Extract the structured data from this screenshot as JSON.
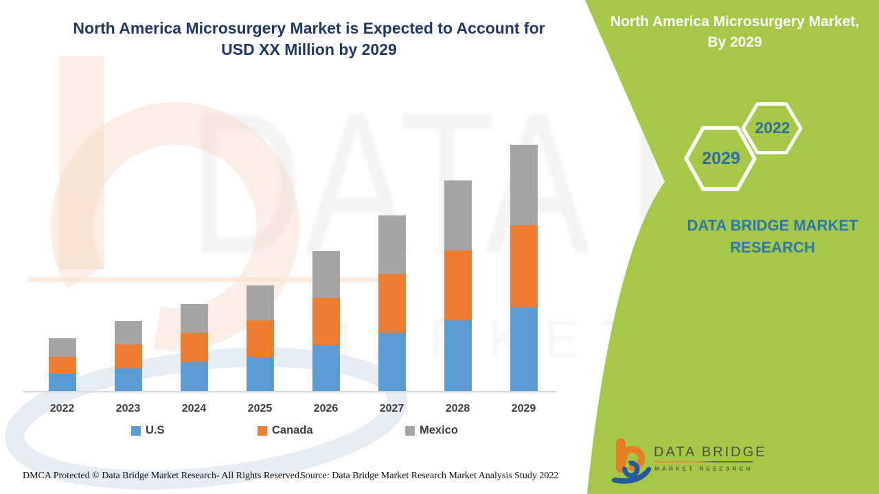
{
  "title": {
    "line1": "North America Microsurgery Market is Expected to Account for",
    "line2": "USD XX Million by 2029"
  },
  "side_panel": {
    "title_line1": "North America Microsurgery Market,",
    "title_line2": "By 2029",
    "hexagon_large_year": "2029",
    "hexagon_small_year": "2022",
    "brand_line1": "DATA BRIDGE MARKET",
    "brand_line2": "RESEARCH"
  },
  "chart_data": {
    "type": "bar",
    "stacked": true,
    "title": "North America Microsurgery Market is Expected to Account for USD XX Million by 2029",
    "categories": [
      "2022",
      "2023",
      "2024",
      "2025",
      "2026",
      "2027",
      "2028",
      "2029"
    ],
    "series": [
      {
        "name": "U.S",
        "color": "#5b9bd5",
        "values": [
          25,
          33,
          42,
          50,
          67,
          85,
          103,
          122
        ]
      },
      {
        "name": "Canada",
        "color": "#ed7d31",
        "values": [
          25,
          35,
          43,
          53,
          69,
          86,
          102,
          120
        ]
      },
      {
        "name": "Mexico",
        "color": "#a5a5a5",
        "values": [
          27,
          34,
          42,
          51,
          68,
          85,
          102,
          117
        ]
      }
    ],
    "value_unit": "relative units (y-axis not shown; chart labeled USD XX Million)",
    "xlabel": "",
    "ylabel": "",
    "grid": false,
    "y_axis_visible": false,
    "legend_position": "bottom"
  },
  "footer": {
    "dmca_text": "DMCA Protected © Data Bridge Market Research- All Rights Reserved.",
    "source_text": "Source: Data Bridge Market Research Market Analysis Study 2022"
  },
  "logo": {
    "name": "DATA BRIDGE",
    "subtitle": "MARKET RESEARCH"
  },
  "watermark": {
    "large_text": "DATA BRIDGE",
    "small_text": "MARKET RESEARCH"
  },
  "colors": {
    "panel_green": "#a5c847",
    "title_navy": "#1f3864",
    "hexagon_year_blue": "#2f6ea5",
    "brand_blue": "#2e78b0",
    "us_blue": "#5b9bd5",
    "canada_orange": "#ed7d31",
    "mexico_gray": "#a5a5a5"
  }
}
